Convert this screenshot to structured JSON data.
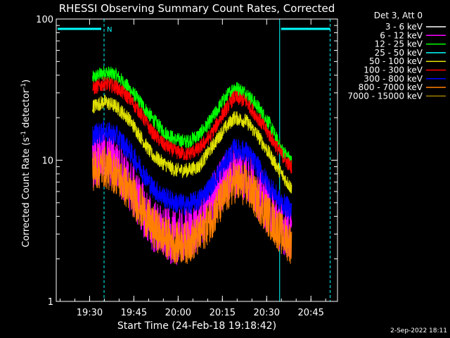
{
  "chart_data": {
    "type": "line",
    "title": "RHESSI Observing Summary Count Rates, Corrected",
    "xlabel": "Start Time (24-Feb-18 19:18:42)",
    "ylabel_main": "Corrected Count Rate (s",
    "ylabel_sup1": "-1",
    "ylabel_mid": " detector",
    "ylabel_sup2": "-1",
    "ylabel_end": ")",
    "yscale": "log",
    "ylim": [
      1,
      100
    ],
    "xlim": [
      "19:18:42",
      "20:54:00"
    ],
    "x_ticks": [
      "19:30",
      "19:45",
      "20:00",
      "20:15",
      "20:30",
      "20:45"
    ],
    "y_ticks": [
      "1",
      "10",
      "100"
    ],
    "legend_header": "Det 3, Att 0",
    "legend_position": "top-right, outside",
    "footer_date": "2-Sep-2022 18:11",
    "data_window": [
      "19:31:00",
      "20:38:30"
    ],
    "x": [
      "19:31",
      "19:35",
      "19:39",
      "19:43",
      "19:47",
      "19:51",
      "19:55",
      "19:59",
      "20:03",
      "20:07",
      "20:11",
      "20:15",
      "20:19",
      "20:23",
      "20:27",
      "20:31",
      "20:35",
      "20:38"
    ],
    "series": [
      {
        "name": "3 - 6 keV",
        "color": "#ffffff",
        "values": [
          0,
          0,
          0,
          0,
          0,
          0,
          0,
          0,
          0,
          0,
          0,
          0,
          0,
          0,
          0,
          0,
          0,
          0
        ]
      },
      {
        "name": "6 - 12 keV",
        "color": "#ff00ff",
        "values": [
          10,
          10.5,
          9.5,
          7,
          5,
          3.5,
          3,
          2.8,
          3,
          3.5,
          5,
          7,
          8.5,
          8,
          6,
          4.5,
          3.5,
          3
        ]
      },
      {
        "name": "12 - 25 keV",
        "color": "#00ff00",
        "values": [
          38,
          42,
          40,
          33,
          26,
          20,
          16,
          14,
          13.5,
          15,
          19,
          26,
          33,
          30,
          24,
          18,
          12,
          10
        ]
      },
      {
        "name": "25 - 50 keV",
        "color": "#00ffff",
        "values": [
          0,
          0,
          0,
          0,
          0,
          0,
          0,
          0,
          0,
          0,
          0,
          0,
          0,
          0,
          0,
          0,
          0,
          0
        ]
      },
      {
        "name": "50 - 100 keV",
        "color": "#e0e000",
        "values": [
          24,
          26,
          24,
          20,
          15,
          11,
          9.5,
          8.5,
          8.5,
          9,
          12,
          16,
          20,
          19,
          15,
          11,
          8,
          6.5
        ]
      },
      {
        "name": "100 - 300 keV",
        "color": "#ff0000",
        "values": [
          32,
          35,
          33,
          28,
          22,
          16,
          13,
          11.5,
          11,
          12,
          15,
          21,
          28,
          26,
          20,
          15,
          11,
          9
        ]
      },
      {
        "name": "300 - 800 keV",
        "color": "#0000ff",
        "values": [
          15,
          16,
          15,
          12,
          9,
          6.5,
          5.5,
          5,
          4.8,
          5.2,
          6.5,
          9,
          12,
          11.5,
          9,
          6.5,
          5,
          4.5
        ]
      },
      {
        "name": "800 - 7000 keV",
        "color": "#ff7f00",
        "values": [
          8.5,
          9,
          8,
          6.2,
          4.8,
          3.4,
          2.9,
          2.6,
          2.6,
          2.9,
          3.8,
          5.2,
          7,
          6.6,
          5.2,
          3.9,
          3,
          2.6
        ]
      },
      {
        "name": "7000 - 15000 keV",
        "color": "#a08000",
        "values": [
          0,
          0,
          0,
          0,
          0,
          0,
          0,
          0,
          0,
          0,
          0,
          0,
          0,
          0,
          0,
          0,
          0,
          0
        ]
      }
    ],
    "annotations": [
      {
        "label": "N",
        "color": "#00ffff"
      }
    ],
    "flag_lines": {
      "color": "#00ffff",
      "times": [
        "19:18:42",
        "19:34:54",
        "20:34:24",
        "20:51:30"
      ]
    }
  }
}
